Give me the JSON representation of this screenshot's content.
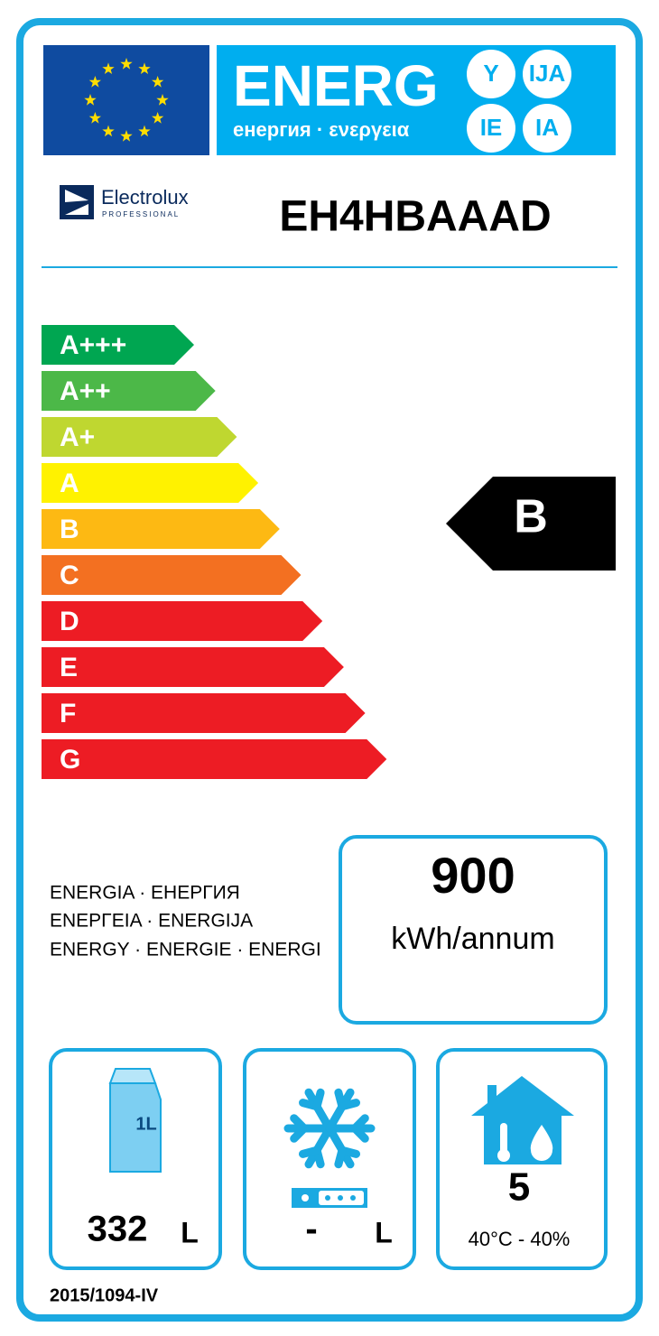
{
  "header": {
    "title": "ENERG",
    "subtitle": "енергия · ενεργεια",
    "suffixes": [
      "Y",
      "IJA",
      "IE",
      "IA"
    ]
  },
  "supplier": {
    "brand": "Electrolux",
    "brand_sub": "PROFESSIONAL",
    "model": "EH4HBAAAD"
  },
  "scale": {
    "classes": [
      {
        "label": "A+++",
        "color": "#00a651"
      },
      {
        "label": "A++",
        "color": "#4cb848"
      },
      {
        "label": "A+",
        "color": "#bfd730"
      },
      {
        "label": "A",
        "color": "#fff200"
      },
      {
        "label": "B",
        "color": "#fdb913"
      },
      {
        "label": "C",
        "color": "#f37021"
      },
      {
        "label": "D",
        "color": "#ed1c24"
      },
      {
        "label": "E",
        "color": "#ed1c24"
      },
      {
        "label": "F",
        "color": "#ed1c24"
      },
      {
        "label": "G",
        "color": "#ed1c24"
      }
    ]
  },
  "rating": {
    "label": "B"
  },
  "consumption": {
    "caption": [
      "ENERGIA · ЕНЕРГИЯ",
      "ΕΝΕΡΓΕΙΑ · ENERGIJA",
      "ENERGY · ENERGIE · ENERGI"
    ],
    "value": 900,
    "unit": "kWh/annum"
  },
  "storage": {
    "icon_label": "1L",
    "volume": 332,
    "unit": "L"
  },
  "frozen": {
    "volume": "-",
    "unit": "L"
  },
  "climate": {
    "class": 5,
    "range": "40°C - 40%"
  },
  "regulation": "2015/1094-IV"
}
